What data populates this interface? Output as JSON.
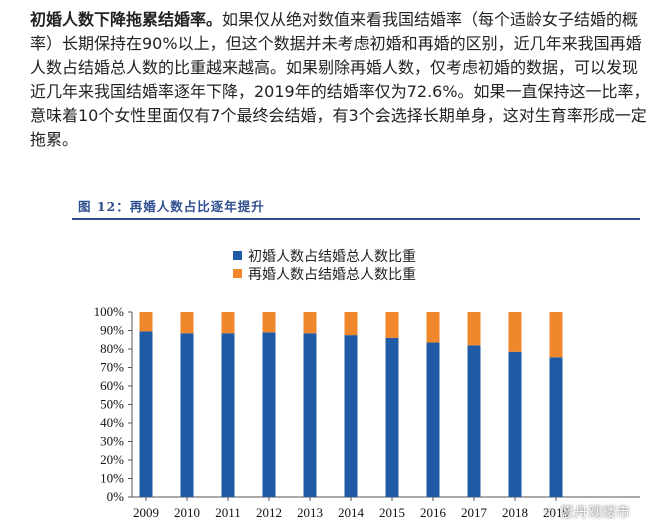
{
  "paragraph": {
    "lead": "初婚人数下降拖累结婚率。",
    "line1": "如果仅从绝对数值来看我国结婚率（每个适龄女子结婚的概",
    "line2": "率）长期保持在90%以上，但这个数据并未考虑初婚和再婚的区别，近几年来我国再婚",
    "line3": "人数占结婚总人数的比重越来越高。如果剔除再婚人数，仅考虑初婚的数据，可以发现",
    "line4": "近几年来我国结婚率逐年下降，2019年的结婚率仅为72.6%。如果一直保持这一比率，",
    "line5": "意味着10个女性里面仅有7个最终会结婚，有3个会选择长期单身，这对生育率形成一定",
    "line6": "拖累。"
  },
  "figure": {
    "title": "图 12：再婚人数占比逐年提升"
  },
  "watermark": "☆ 愿舟观楼市",
  "chart_data": {
    "type": "bar",
    "stacked": true,
    "categories": [
      "2009",
      "2010",
      "2011",
      "2012",
      "2013",
      "2014",
      "2015",
      "2016",
      "2017",
      "2018",
      "2019"
    ],
    "series": [
      {
        "name": "初婚人数占结婚总人数比重",
        "color": "#1f5aa6",
        "values": [
          89.5,
          88.5,
          88.5,
          89.0,
          88.5,
          87.5,
          86.0,
          83.5,
          82.0,
          78.5,
          75.5
        ]
      },
      {
        "name": "再婚人数占结婚总人数比重",
        "color": "#f0872a",
        "values": [
          10.5,
          11.5,
          11.5,
          11.0,
          11.5,
          12.5,
          14.0,
          16.5,
          18.0,
          21.5,
          24.5
        ]
      }
    ],
    "ylim": [
      0,
      100
    ],
    "yticks": [
      "0%",
      "10%",
      "20%",
      "30%",
      "40%",
      "50%",
      "60%",
      "70%",
      "80%",
      "90%",
      "100%"
    ],
    "legend_position": "top",
    "grid": false
  }
}
